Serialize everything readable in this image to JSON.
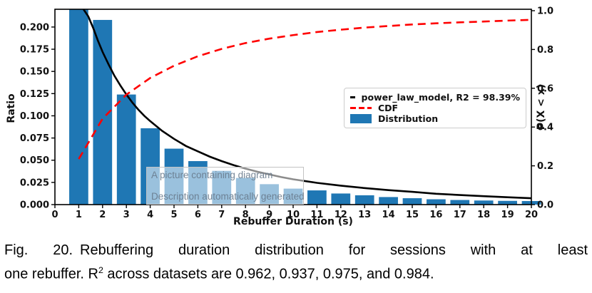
{
  "figure": {
    "caption": {
      "fig_label": "Fig. 20.",
      "line1": "Rebuffering duration distribution for sessions with at least",
      "line2_pre": "one rebuffer. R",
      "line2_sup": "2",
      "line2_post": " across datasets are 0.962, 0.937, 0.975, and 0.984."
    },
    "alt_overlay": {
      "line1": "A picture containing diagram",
      "line2": "Description automatically generated"
    }
  },
  "chart_data": {
    "type": "bar",
    "title": "",
    "xlabel": "Rebuffer Duration (s)",
    "ylabel_left": "Ratio",
    "ylabel_right": "P(X < x)",
    "xlim": [
      0,
      20
    ],
    "ylim_left": [
      0,
      0.22
    ],
    "ylim_right": [
      0,
      1.0
    ],
    "grid": false,
    "legend_position": "center right",
    "x_ticks": [
      0,
      1,
      2,
      3,
      4,
      5,
      6,
      7,
      8,
      9,
      10,
      11,
      12,
      13,
      14,
      15,
      16,
      17,
      18,
      19,
      20
    ],
    "y_ticks_left_values": [
      0,
      0.025,
      0.05,
      0.075,
      0.1,
      0.125,
      0.15,
      0.175,
      0.2
    ],
    "y_ticks_left_labels": [
      "0.000",
      "0.025",
      "0.050",
      "0.075",
      "0.100",
      "0.125",
      "0.150",
      "0.175",
      "0.200"
    ],
    "y_ticks_right_values": [
      0,
      0.2,
      0.4,
      0.6,
      0.8,
      1.0
    ],
    "y_ticks_right_labels": [
      "0.0",
      "0.2",
      "0.4",
      "0.6",
      "0.8",
      "1.0"
    ],
    "x": [
      1,
      2,
      3,
      4,
      5,
      6,
      7,
      8,
      9,
      10,
      11,
      12,
      13,
      14,
      15,
      16,
      17,
      18,
      19,
      20
    ],
    "series": [
      {
        "name": "power_law_model, R2 = 98.39%",
        "type": "line",
        "color": "#000000",
        "axis": "left",
        "points": [
          [
            1.05,
            0.26
          ],
          [
            1.2,
            0.22
          ],
          [
            1.4,
            0.212
          ],
          [
            1.62,
            0.198
          ],
          [
            1.8,
            0.185
          ],
          [
            2,
            0.172
          ],
          [
            2.25,
            0.158
          ],
          [
            2.5,
            0.145
          ],
          [
            2.75,
            0.134
          ],
          [
            3,
            0.124
          ],
          [
            3.25,
            0.115
          ],
          [
            3.5,
            0.107
          ],
          [
            3.75,
            0.1
          ],
          [
            4,
            0.094
          ],
          [
            4.5,
            0.083
          ],
          [
            5,
            0.074
          ],
          [
            5.5,
            0.066
          ],
          [
            6,
            0.06
          ],
          [
            6.5,
            0.054
          ],
          [
            7,
            0.049
          ],
          [
            7.5,
            0.0445
          ],
          [
            8,
            0.0405
          ],
          [
            8.5,
            0.037
          ],
          [
            9,
            0.034
          ],
          [
            9.5,
            0.031
          ],
          [
            10,
            0.0285
          ],
          [
            11,
            0.0245
          ],
          [
            12,
            0.0213
          ],
          [
            13,
            0.0186
          ],
          [
            14,
            0.0163
          ],
          [
            15,
            0.0144
          ],
          [
            16,
            0.0122
          ],
          [
            17,
            0.0108
          ],
          [
            18,
            0.0095
          ],
          [
            19,
            0.0083
          ],
          [
            20,
            0.0072
          ]
        ]
      },
      {
        "name": "CDF",
        "type": "dashed-line",
        "color": "#ff0000",
        "axis": "right",
        "values": [
          0.235,
          0.443,
          0.567,
          0.653,
          0.716,
          0.765,
          0.803,
          0.833,
          0.856,
          0.874,
          0.89,
          0.902,
          0.913,
          0.921,
          0.929,
          0.935,
          0.94,
          0.944,
          0.949,
          0.953
        ]
      },
      {
        "name": "Distribution",
        "type": "bar",
        "color": "#1f77b4",
        "axis": "left",
        "values": [
          0.235,
          0.208,
          0.124,
          0.086,
          0.063,
          0.049,
          0.038,
          0.03,
          0.023,
          0.018,
          0.016,
          0.0125,
          0.0105,
          0.0085,
          0.0072,
          0.006,
          0.0052,
          0.0046,
          0.0042,
          0.004
        ]
      }
    ]
  }
}
